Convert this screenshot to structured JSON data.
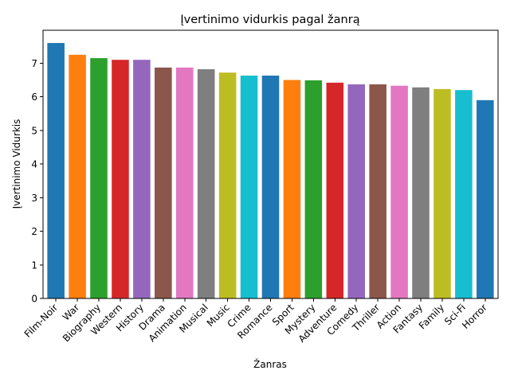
{
  "chart_data": {
    "type": "bar",
    "title": "Įvertinimo vidurkis pagal žanrą",
    "xlabel": "Žanras",
    "ylabel": "Įvertinimo Vidurkis",
    "ylim": [
      0,
      7.98
    ],
    "yticks": [
      0,
      1,
      2,
      3,
      4,
      5,
      6,
      7
    ],
    "grid": false,
    "categories": [
      "Film-Noir",
      "War",
      "Biography",
      "Western",
      "History",
      "Drama",
      "Animation",
      "Musical",
      "Music",
      "Crime",
      "Romance",
      "Sport",
      "Mystery",
      "Adventure",
      "Comedy",
      "Thriller",
      "Action",
      "Fantasy",
      "Family",
      "Sci-Fi",
      "Horror"
    ],
    "values": [
      7.6,
      7.25,
      7.15,
      7.1,
      7.1,
      6.87,
      6.87,
      6.82,
      6.72,
      6.63,
      6.63,
      6.5,
      6.49,
      6.42,
      6.37,
      6.37,
      6.33,
      6.28,
      6.23,
      6.2,
      5.9
    ],
    "colors": [
      "#1f77b4",
      "#ff7f0e",
      "#2ca02c",
      "#d62728",
      "#9467bd",
      "#8c564b",
      "#e377c2",
      "#7f7f7f",
      "#bcbd22",
      "#17becf",
      "#1f77b4",
      "#ff7f0e",
      "#2ca02c",
      "#d62728",
      "#9467bd",
      "#8c564b",
      "#e377c2",
      "#7f7f7f",
      "#bcbd22",
      "#17becf",
      "#1f77b4"
    ]
  }
}
